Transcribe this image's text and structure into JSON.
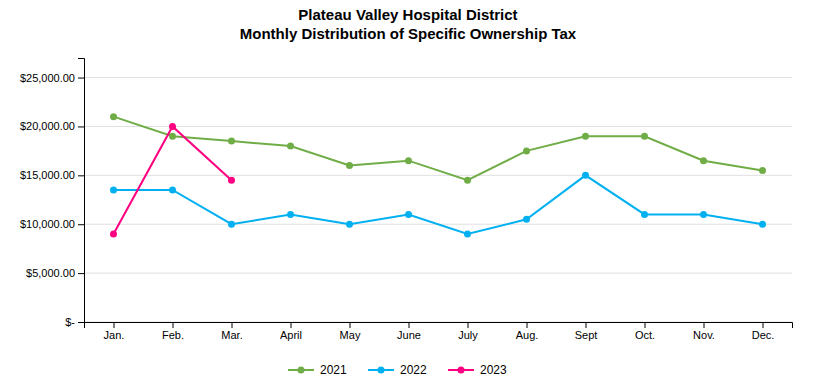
{
  "chart_data": {
    "type": "line",
    "title": "Plateau Valley Hospital District",
    "subtitle": "Monthly Distribution of Specific Ownership Tax",
    "categories": [
      "Jan.",
      "Feb.",
      "Mar.",
      "April",
      "May",
      "June",
      "July",
      "Aug.",
      "Sept",
      "Oct.",
      "Nov.",
      "Dec."
    ],
    "series": [
      {
        "name": "2021",
        "color": "#70AD47",
        "marker": "circle",
        "values": [
          21000,
          19000,
          18500,
          18000,
          16000,
          16500,
          14500,
          17500,
          19000,
          19000,
          16500,
          15500
        ]
      },
      {
        "name": "2022",
        "color": "#00B0F0",
        "marker": "circle",
        "values": [
          13500,
          13500,
          10000,
          11000,
          10000,
          11000,
          9000,
          10500,
          15000,
          11000,
          11000,
          10000
        ]
      },
      {
        "name": "2023",
        "color": "#FF0080",
        "marker": "circle",
        "values": [
          9000,
          20000,
          14500,
          null,
          null,
          null,
          null,
          null,
          null,
          null,
          null,
          null
        ]
      }
    ],
    "ylim": [
      0,
      27000
    ],
    "yticks": [
      {
        "value": 0,
        "label": "$-"
      },
      {
        "value": 5000,
        "label": "$5,000.00"
      },
      {
        "value": 10000,
        "label": "$10,000.00"
      },
      {
        "value": 15000,
        "label": "$15,000.00"
      },
      {
        "value": 20000,
        "label": "$20,000.00"
      },
      {
        "value": 25000,
        "label": "$25,000.00"
      }
    ],
    "grid": true,
    "legend": "bottom"
  }
}
